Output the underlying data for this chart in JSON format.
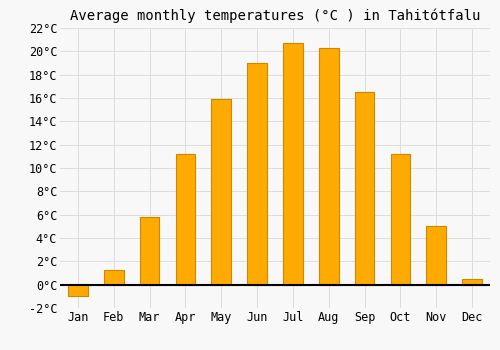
{
  "title": "Average monthly temperatures (°C ) in Tahitótfalu",
  "months": [
    "Jan",
    "Feb",
    "Mar",
    "Apr",
    "May",
    "Jun",
    "Jul",
    "Aug",
    "Sep",
    "Oct",
    "Nov",
    "Dec"
  ],
  "values": [
    -1.0,
    1.3,
    5.8,
    11.2,
    15.9,
    19.0,
    20.7,
    20.3,
    16.5,
    11.2,
    5.0,
    0.5
  ],
  "bar_color": "#FFAA00",
  "bar_edge_color": "#CC8800",
  "background_color": "#f8f8f8",
  "plot_bg_color": "#f8f8f8",
  "grid_color": "#dddddd",
  "ylim": [
    -2,
    22
  ],
  "yticks": [
    -2,
    0,
    2,
    4,
    6,
    8,
    10,
    12,
    14,
    16,
    18,
    20,
    22
  ],
  "title_fontsize": 10,
  "tick_fontsize": 8.5,
  "zero_line_color": "#000000",
  "bar_width": 0.55
}
